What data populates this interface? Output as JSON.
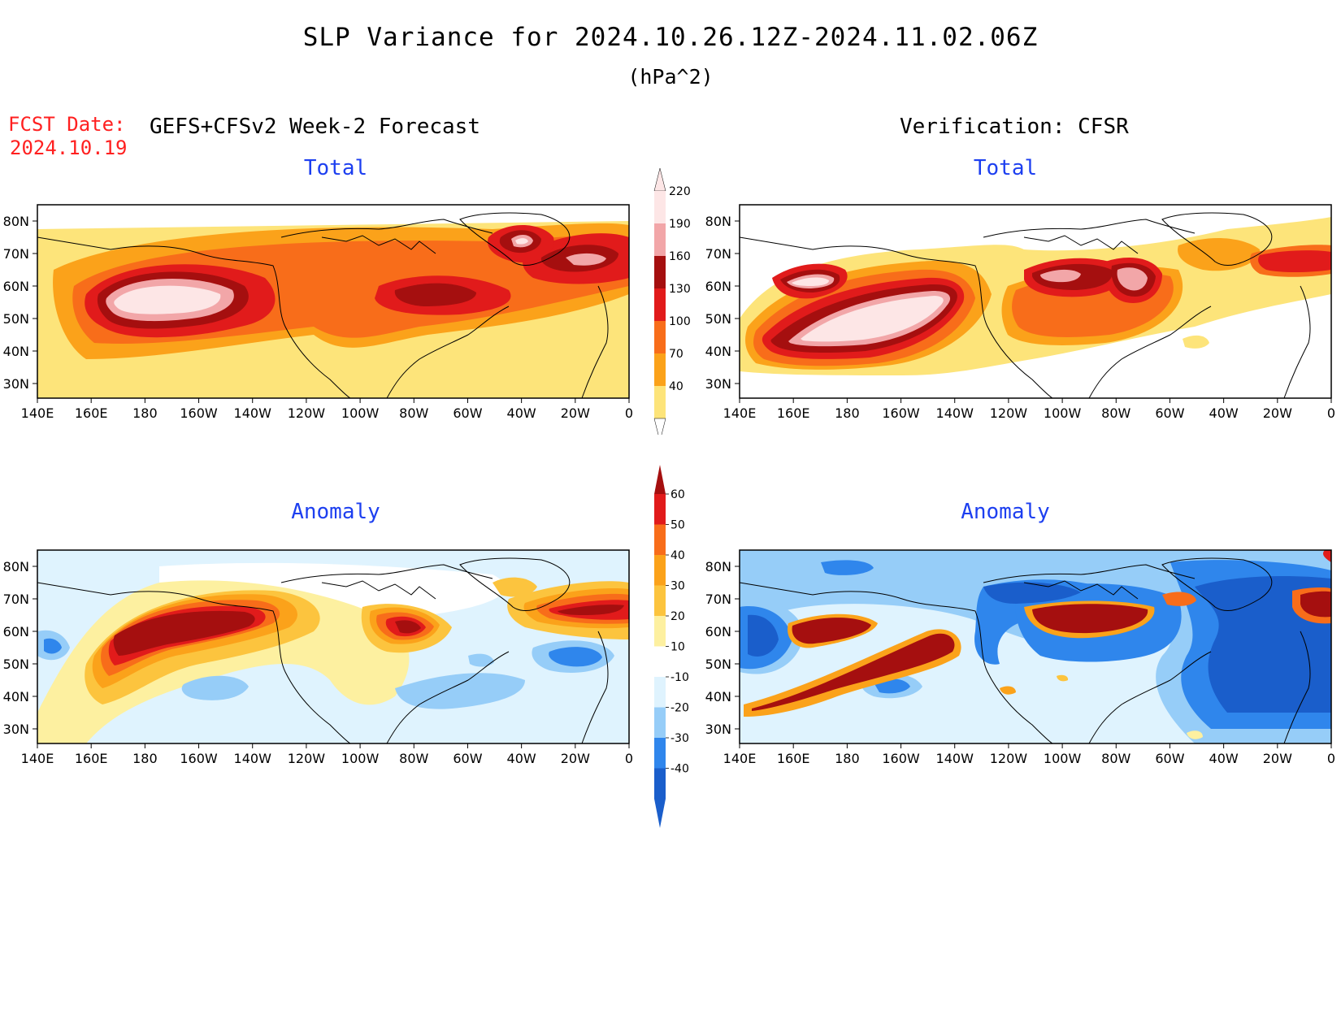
{
  "header": {
    "title": "SLP Variance for 2024.10.26.12Z-2024.11.02.06Z",
    "units": "(hPa^2)",
    "fcst_label": "FCST Date:",
    "fcst_date": "2024.10.19",
    "left_subtitle": "GEFS+CFSv2 Week-2 Forecast",
    "right_subtitle": "Verification: CFSR"
  },
  "panels": {
    "forecast_total": "Total",
    "verification_total": "Total",
    "forecast_anomaly": "Anomaly",
    "verification_anomaly": "Anomaly"
  },
  "axes": {
    "lat_labels": [
      "80N",
      "70N",
      "60N",
      "50N",
      "40N",
      "30N"
    ],
    "lon_labels": [
      "140E",
      "160E",
      "180",
      "160W",
      "140W",
      "120W",
      "100W",
      "80W",
      "60W",
      "40W",
      "20W",
      "0"
    ]
  },
  "colorbars": {
    "total": {
      "labels": [
        "220",
        "190",
        "160",
        "130",
        "100",
        "70",
        "40"
      ],
      "colors": [
        "#fde6e6",
        "#f2a6a8",
        "#a50f0f",
        "#e11b1b",
        "#f86d1a",
        "#fba21a",
        "#fde47a"
      ]
    },
    "anomaly": {
      "labels": [
        "60",
        "50",
        "40",
        "30",
        "20",
        "10",
        "-10",
        "-20",
        "-30",
        "-40"
      ],
      "colors": [
        "#a50f0f",
        "#e11b1b",
        "#f86d1a",
        "#fba21a",
        "#fcc43e",
        "#fdf0a0",
        "#ffffff",
        "#dff3fe",
        "#96cdf8",
        "#2f86ec",
        "#1a5ecb"
      ]
    }
  }
}
